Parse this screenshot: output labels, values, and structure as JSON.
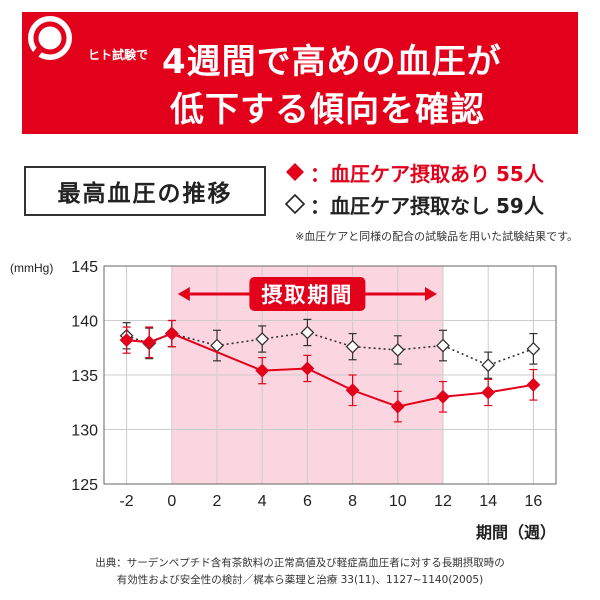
{
  "banner": {
    "tag": "ヒト試験で",
    "line1": "4週間で高めの血圧が",
    "line2": "低下する傾向を確認",
    "color": "#e3001b",
    "icon": "magnifier-icon"
  },
  "section_title": "最高血圧の推移",
  "legend": [
    {
      "marker": "◆",
      "label": "：血圧ケア摂取あり",
      "count": "55人",
      "color": "#e3001b"
    },
    {
      "marker": "◇",
      "label": "：血圧ケア摂取なし",
      "count": "59人",
      "color": "#222222"
    }
  ],
  "note": "※血圧ケアと同様の配合の試験品を用いた試験結果です。",
  "source": {
    "line1": "出典：サーデンペプチド含有茶飲料の正常高値及び軽症高血圧者に対する長期摂取時の",
    "line2": "有効性および安全性の検討／梶本ら薬理と治療 33(11)、1127~1140(2005)"
  },
  "chart_data": {
    "type": "line",
    "ylabel": "(mmHg)",
    "xlabel": "期間（週）",
    "ylim": [
      125,
      145
    ],
    "yticks": [
      125,
      130,
      135,
      140,
      145
    ],
    "xlim": [
      -3,
      17
    ],
    "xticks": [
      -2,
      0,
      2,
      4,
      6,
      8,
      10,
      12,
      14,
      16
    ],
    "grid": true,
    "intake_period": {
      "label": "摂取期間",
      "from": 0,
      "to": 12,
      "color": "#fbd5df"
    },
    "series": [
      {
        "name": "血圧ケア摂取あり",
        "color": "#e3001b",
        "marker": "filled-diamond",
        "line": "solid",
        "points": [
          {
            "x": -2,
            "y": 138.2,
            "err": 1.2
          },
          {
            "x": -1,
            "y": 138.0,
            "err": 1.4
          },
          {
            "x": 0,
            "y": 138.8,
            "err": 1.2
          },
          {
            "x": 4,
            "y": 135.4,
            "err": 1.2
          },
          {
            "x": 6,
            "y": 135.6,
            "err": 1.2
          },
          {
            "x": 8,
            "y": 133.6,
            "err": 1.4
          },
          {
            "x": 10,
            "y": 132.1,
            "err": 1.4
          },
          {
            "x": 12,
            "y": 133.0,
            "err": 1.4
          },
          {
            "x": 14,
            "y": 133.4,
            "err": 1.2
          },
          {
            "x": 16,
            "y": 134.1,
            "err": 1.4
          }
        ]
      },
      {
        "name": "血圧ケア摂取なし",
        "color": "#333333",
        "marker": "open-diamond",
        "line": "dotted",
        "points": [
          {
            "x": -2,
            "y": 138.6,
            "err": 1.2
          },
          {
            "x": -1,
            "y": 137.9,
            "err": 1.4
          },
          {
            "x": 0,
            "y": 138.8,
            "err": 1.2
          },
          {
            "x": 2,
            "y": 137.7,
            "err": 1.4
          },
          {
            "x": 4,
            "y": 138.3,
            "err": 1.2
          },
          {
            "x": 6,
            "y": 138.9,
            "err": 1.2
          },
          {
            "x": 8,
            "y": 137.6,
            "err": 1.2
          },
          {
            "x": 10,
            "y": 137.3,
            "err": 1.3
          },
          {
            "x": 12,
            "y": 137.7,
            "err": 1.4
          },
          {
            "x": 14,
            "y": 135.9,
            "err": 1.2
          },
          {
            "x": 16,
            "y": 137.4,
            "err": 1.4
          }
        ]
      }
    ]
  }
}
